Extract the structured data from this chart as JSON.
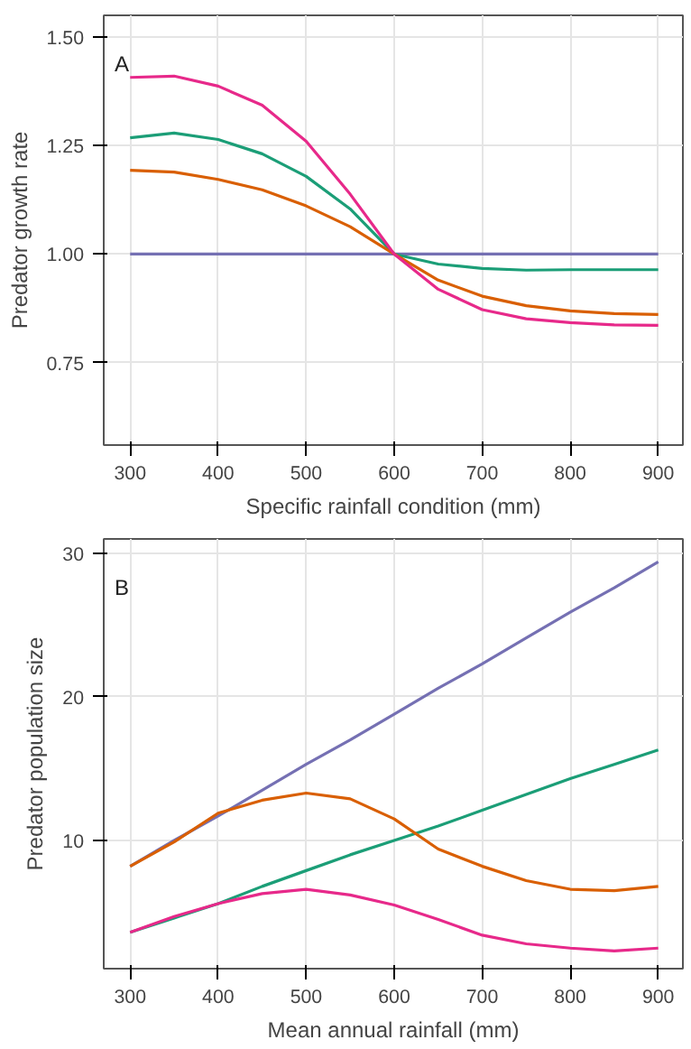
{
  "chart_data": [
    {
      "type": "line",
      "annotations": [
        "A"
      ],
      "xlabel": "Specific rainfall condition (mm)",
      "ylabel": "Predator growth rate",
      "xlim": [
        270,
        928
      ],
      "ylim": [
        0.56,
        1.55
      ],
      "xticks": [
        300,
        400,
        500,
        600,
        700,
        800,
        900
      ],
      "yticks": [
        0.75,
        {
          "value": 1.0,
          "label": "1.00"
        },
        1.25,
        {
          "value": 1.5,
          "label": "1.50"
        }
      ],
      "grid": true,
      "x": [
        300,
        350,
        400,
        450,
        500,
        550,
        600,
        650,
        700,
        750,
        800,
        850,
        900
      ],
      "series": [
        {
          "color": "#7570b3",
          "values": [
            1.0,
            1.0,
            1.0,
            1.0,
            1.0,
            1.0,
            1.0,
            1.0,
            1.0,
            1.0,
            1.0,
            1.0,
            1.0
          ]
        },
        {
          "color": "#1b9e77",
          "values": [
            1.268,
            1.279,
            1.264,
            1.231,
            1.179,
            1.104,
            1.0,
            0.977,
            0.967,
            0.963,
            0.964,
            0.964,
            0.964
          ]
        },
        {
          "color": "#d95f02",
          "values": [
            1.193,
            1.189,
            1.172,
            1.148,
            1.111,
            1.063,
            1.0,
            0.94,
            0.903,
            0.881,
            0.869,
            0.863,
            0.861
          ]
        },
        {
          "color": "#e7298a",
          "values": [
            1.407,
            1.41,
            1.387,
            1.343,
            1.26,
            1.138,
            1.0,
            0.919,
            0.872,
            0.851,
            0.842,
            0.837,
            0.836
          ]
        }
      ]
    },
    {
      "type": "line",
      "annotations": [
        "B"
      ],
      "xlabel": "Mean annual rainfall (mm)",
      "ylabel": "Predator population size",
      "xlim": [
        270,
        928
      ],
      "ylim": [
        1.07,
        31
      ],
      "xticks": [
        300,
        400,
        500,
        600,
        700,
        800,
        900
      ],
      "yticks": [
        10,
        20,
        30
      ],
      "grid": true,
      "x": [
        300,
        350,
        400,
        450,
        500,
        550,
        600,
        650,
        700,
        750,
        800,
        850,
        900
      ],
      "series": [
        {
          "color": "#7570b3",
          "values": [
            8.2,
            10.0,
            11.7,
            13.5,
            15.3,
            17.0,
            18.8,
            20.6,
            22.3,
            24.1,
            25.9,
            27.6,
            29.4
          ]
        },
        {
          "color": "#1b9e77",
          "values": [
            3.6,
            4.6,
            5.6,
            6.8,
            7.9,
            9.0,
            10.0,
            11.0,
            12.1,
            13.2,
            14.3,
            15.3,
            16.3
          ]
        },
        {
          "color": "#d95f02",
          "values": [
            8.2,
            9.9,
            11.9,
            12.8,
            13.3,
            12.9,
            11.5,
            9.4,
            8.2,
            7.2,
            6.6,
            6.5,
            6.8
          ]
        },
        {
          "color": "#e7298a",
          "values": [
            3.6,
            4.7,
            5.6,
            6.3,
            6.6,
            6.2,
            5.5,
            4.5,
            3.4,
            2.8,
            2.5,
            2.3,
            2.5
          ]
        }
      ]
    }
  ]
}
